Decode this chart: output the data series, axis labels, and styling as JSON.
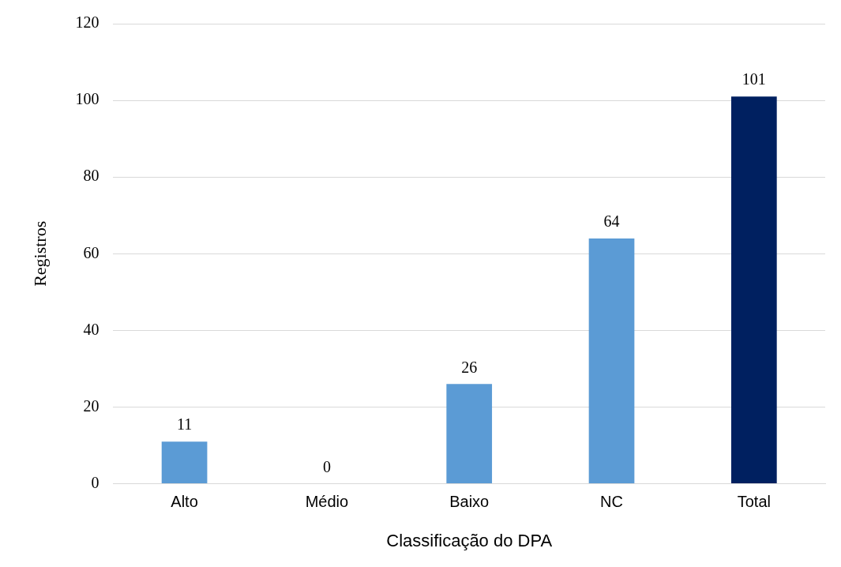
{
  "chart_data": {
    "type": "bar",
    "xlabel": "Classificação do DPA",
    "ylabel": "Registros",
    "categories": [
      "Alto",
      "Médio",
      "Baixo",
      "NC",
      "Total"
    ],
    "values": [
      11,
      0,
      26,
      64,
      101
    ],
    "colors": [
      "#5b9bd5",
      "#5b9bd5",
      "#5b9bd5",
      "#5b9bd5",
      "#002060"
    ],
    "ylim": [
      0,
      120
    ],
    "yticks": [
      0,
      20,
      40,
      60,
      80,
      100,
      120
    ],
    "grid": "y",
    "legend": false,
    "data_labels": true
  }
}
